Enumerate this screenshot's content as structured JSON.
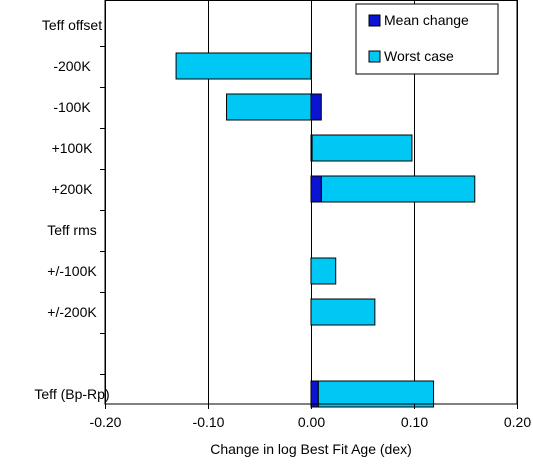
{
  "chart_data": {
    "type": "bar",
    "orientation": "horizontal",
    "stacked": true,
    "xlabel": "Change in log Best Fit Age (dex)",
    "xlim": [
      -0.2,
      0.2
    ],
    "xticks": [
      -0.2,
      -0.1,
      0.0,
      0.1,
      0.2
    ],
    "xtick_labels": [
      "-0.20",
      "-0.10",
      "0.00",
      "0.10",
      "0.20"
    ],
    "grid": "vertical lines at major ticks",
    "legend_position": "top-right",
    "categories": [
      "Teff offset",
      "-200K",
      "-100K",
      "+100K",
      "+200K",
      "Teff rms",
      "+/-100K",
      "+/-200K",
      "",
      "Teff (Bp-Rp)"
    ],
    "series": [
      {
        "name": "Mean change",
        "color": "#0a14d2",
        "values": [
          null,
          0.0,
          0.01,
          0.001,
          0.01,
          null,
          0.0,
          0.0,
          null,
          0.007
        ]
      },
      {
        "name": "Worst case",
        "color": "#00c8f5",
        "values": [
          null,
          -0.131,
          -0.082,
          0.098,
          0.159,
          null,
          0.024,
          0.062,
          null,
          0.119
        ]
      }
    ]
  }
}
